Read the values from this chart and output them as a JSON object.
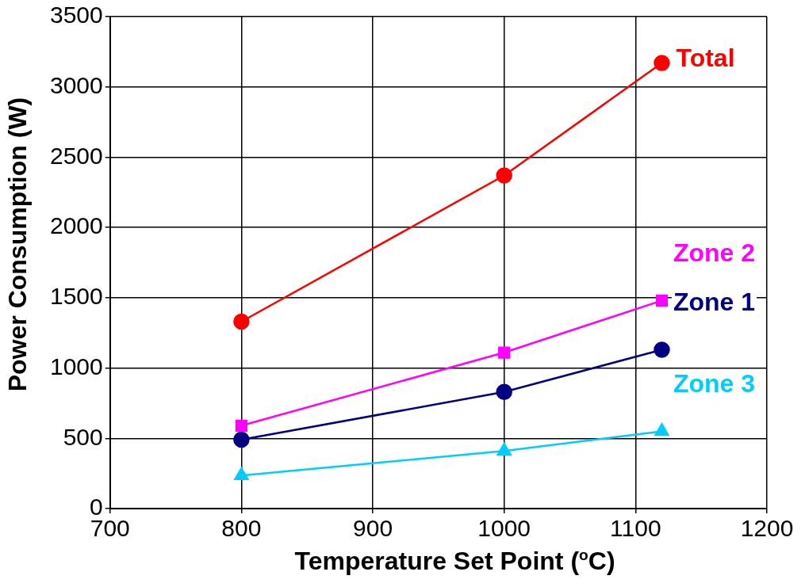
{
  "chart_data": {
    "type": "line",
    "xlabel": "Temperature Set Point ($^{o}$C)",
    "ylabel": "Power Consumption (W)",
    "xlim": [
      700,
      1200
    ],
    "xticks": [
      700,
      800,
      900,
      1000,
      1100,
      1200
    ],
    "ylim": [
      0,
      3500
    ],
    "yticks": [
      0,
      500,
      1000,
      1500,
      2000,
      2500,
      3000,
      3500
    ],
    "grid": true,
    "legend": false,
    "x": [
      800,
      1000,
      1120
    ],
    "series": [
      {
        "name": "Total",
        "color": "#ff0000",
        "values": [
          1330,
          2370,
          3170
        ],
        "marker": "circle"
      },
      {
        "name": "Zone 2",
        "color": "#ff00ff",
        "values": [
          590,
          1110,
          1480
        ],
        "marker": "square"
      },
      {
        "name": "Zone 1",
        "color": "#000080",
        "values": [
          490,
          830,
          1130
        ],
        "marker": "circle"
      },
      {
        "name": "Zone 3",
        "color": "#00ccff",
        "values": [
          235,
          410,
          550
        ],
        "marker": "triangle"
      }
    ]
  }
}
